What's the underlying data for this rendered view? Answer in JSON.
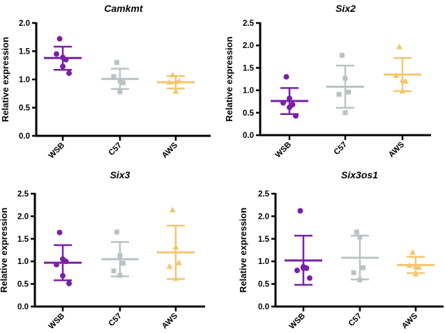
{
  "chart_data": [
    {
      "type": "scatter",
      "title": "Camkmt",
      "ylabel": "Relative expression",
      "categories": [
        "WSB",
        "C57",
        "AWS"
      ],
      "ylim": [
        0,
        2.0
      ],
      "yticks": [
        "0.0",
        "0.5",
        "1.0",
        "1.5",
        "2.0"
      ],
      "series": [
        {
          "category": "WSB",
          "marker": "circle",
          "points": [
            1.72,
            1.39,
            1.35,
            1.45,
            1.23,
            1.11
          ],
          "mean": 1.38,
          "sd_low": 1.17,
          "sd_high": 1.58
        },
        {
          "category": "C57",
          "marker": "square",
          "points": [
            1.3,
            0.98,
            0.94,
            1.05,
            0.78
          ],
          "mean": 1.01,
          "sd_low": 0.83,
          "sd_high": 1.19
        },
        {
          "category": "AWS",
          "marker": "triangle",
          "points": [
            1.08,
            0.96,
            0.97,
            0.95,
            0.79
          ],
          "mean": 0.95,
          "sd_low": 0.84,
          "sd_high": 1.06
        }
      ]
    },
    {
      "type": "scatter",
      "title": "Six2",
      "ylabel": "Relative expression",
      "categories": [
        "WSB",
        "C57",
        "AWS"
      ],
      "ylim": [
        0,
        2.5
      ],
      "yticks": [
        "0.0",
        "0.5",
        "1.0",
        "1.5",
        "2.0",
        "2.5"
      ],
      "series": [
        {
          "category": "WSB",
          "marker": "circle",
          "points": [
            1.3,
            0.82,
            0.68,
            0.72,
            0.62,
            0.43
          ],
          "mean": 0.76,
          "sd_low": 0.47,
          "sd_high": 1.05
        },
        {
          "category": "C57",
          "marker": "square",
          "points": [
            1.78,
            1.27,
            0.96,
            0.91,
            0.5
          ],
          "mean": 1.08,
          "sd_low": 0.61,
          "sd_high": 1.55
        },
        {
          "category": "AWS",
          "marker": "triangle",
          "points": [
            1.97,
            1.22,
            1.2,
            1.33,
            0.98
          ],
          "mean": 1.35,
          "sd_low": 0.98,
          "sd_high": 1.72
        }
      ]
    },
    {
      "type": "scatter",
      "title": "Six3",
      "ylabel": "Relative expression",
      "categories": [
        "WSB",
        "C57",
        "AWS"
      ],
      "ylim": [
        0,
        2.5
      ],
      "yticks": [
        "0.0",
        "0.5",
        "1.0",
        "1.5",
        "2.0",
        "2.5"
      ],
      "series": [
        {
          "category": "WSB",
          "marker": "circle",
          "points": [
            1.64,
            1.05,
            1.0,
            0.93,
            0.68,
            0.51
          ],
          "mean": 0.97,
          "sd_low": 0.58,
          "sd_high": 1.36
        },
        {
          "category": "C57",
          "marker": "square",
          "points": [
            1.65,
            1.13,
            0.96,
            0.79,
            0.69
          ],
          "mean": 1.05,
          "sd_low": 0.67,
          "sd_high": 1.43
        },
        {
          "category": "AWS",
          "marker": "triangle",
          "points": [
            2.14,
            1.32,
            0.97,
            0.89,
            0.62
          ],
          "mean": 1.2,
          "sd_low": 0.61,
          "sd_high": 1.79
        }
      ]
    },
    {
      "type": "scatter",
      "title": "Six3os1",
      "ylabel": "Relative expression",
      "categories": [
        "WSB",
        "C57",
        "AWS"
      ],
      "ylim": [
        0,
        2.5
      ],
      "yticks": [
        "0.0",
        "0.5",
        "1.0",
        "1.5",
        "2.0",
        "2.5"
      ],
      "series": [
        {
          "category": "WSB",
          "marker": "circle",
          "points": [
            2.12,
            0.88,
            0.85,
            0.8,
            0.85,
            0.63
          ],
          "mean": 1.02,
          "sd_low": 0.48,
          "sd_high": 1.57
        },
        {
          "category": "C57",
          "marker": "square",
          "points": [
            1.65,
            1.54,
            0.86,
            0.75,
            0.59
          ],
          "mean": 1.08,
          "sd_low": 0.6,
          "sd_high": 1.57
        },
        {
          "category": "AWS",
          "marker": "triangle",
          "points": [
            1.2,
            0.89,
            0.87,
            0.91,
            0.72
          ],
          "mean": 0.92,
          "sd_low": 0.74,
          "sd_high": 1.1
        }
      ]
    }
  ],
  "colors": {
    "WSB": "#7a1fa8",
    "C57": "#b8c3c3",
    "AWS": "#f3c66e",
    "axis": "#000000"
  }
}
